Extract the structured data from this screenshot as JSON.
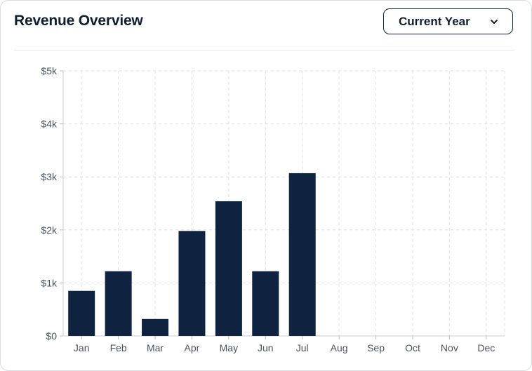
{
  "header": {
    "title": "Revenue Overview",
    "period_select": "Current Year",
    "period_icon": "chevron-down-icon"
  },
  "colors": {
    "bar": "#0f2340",
    "grid": "#dcdfe3",
    "tick_text": "#4a5261"
  },
  "chart_data": {
    "type": "bar",
    "categories": [
      "Jan",
      "Feb",
      "Mar",
      "Apr",
      "May",
      "Jun",
      "Jul",
      "Aug",
      "Sep",
      "Oct",
      "Nov",
      "Dec"
    ],
    "values": [
      850,
      1220,
      320,
      1980,
      2540,
      1220,
      3070,
      0,
      0,
      0,
      0,
      0
    ],
    "ylim": [
      0,
      5000
    ],
    "yticks": [
      0,
      1000,
      2000,
      3000,
      4000,
      5000
    ],
    "ytick_labels": [
      "$0",
      "$1k",
      "$2k",
      "$3k",
      "$4k",
      "$5k"
    ],
    "grid": true,
    "grid_style": "dashed",
    "title": "",
    "xlabel": "",
    "ylabel": ""
  }
}
